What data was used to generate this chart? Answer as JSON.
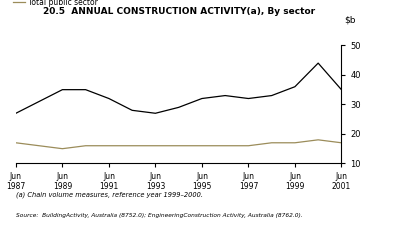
{
  "title": "20.5  ANNUAL CONSTRUCTION ACTIVITY(a), By sector",
  "ylim": [
    10,
    50
  ],
  "yticks": [
    10,
    20,
    30,
    40,
    50
  ],
  "x_years": [
    1987,
    1988,
    1989,
    1990,
    1991,
    1992,
    1993,
    1994,
    1995,
    1996,
    1997,
    1998,
    1999,
    2000,
    2001
  ],
  "private": [
    27,
    31,
    35,
    35,
    32,
    28,
    27,
    29,
    32,
    33,
    32,
    33,
    36,
    44,
    35
  ],
  "public": [
    17,
    16,
    15,
    16,
    16,
    16,
    16,
    16,
    16,
    16,
    16,
    17,
    17,
    18,
    17
  ],
  "private_color": "#000000",
  "public_color": "#9b8c5a",
  "xtick_labels": [
    "Jun\n1987",
    "Jun\n1989",
    "Jun\n1991",
    "Jun\n1993",
    "Jun\n1995",
    "Jun\n1997",
    "Jun\n1999",
    "Jun\n2001"
  ],
  "xtick_positions": [
    1987,
    1989,
    1991,
    1993,
    1995,
    1997,
    1999,
    2001
  ],
  "footnote": "(a) Chain volume measures, reference year 1999–2000.",
  "source": "Source:  BuildingActivity, Australia (8752.0); EngineeringConstruction Activity, Australia (8762.0).",
  "background_color": "#ffffff"
}
